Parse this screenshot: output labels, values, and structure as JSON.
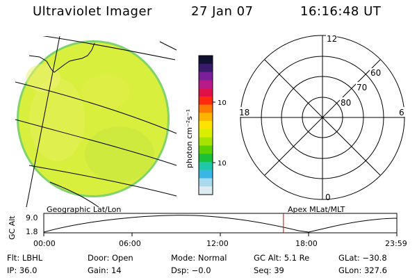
{
  "header": {
    "title": "Ultraviolet Imager",
    "date": "27 Jan 07",
    "time": "16:16:48 UT"
  },
  "colorbar": {
    "label": "photon cm⁻²s⁻¹",
    "tick_labels": [
      "100",
      "10"
    ],
    "colors": [
      "#111133",
      "#3a1a6a",
      "#7a1e9a",
      "#b81a8a",
      "#e0104a",
      "#ff2a10",
      "#ff7a00",
      "#ffb400",
      "#ffe300",
      "#d8f000",
      "#a6e400",
      "#5cd000",
      "#1bbf3a",
      "#1ec8a8",
      "#3ab6e6",
      "#a9d9ec",
      "#dcecf2"
    ]
  },
  "earth_panel": {
    "label": "Geographic Lat/Lon",
    "disk_color": "#d8ef3e",
    "edge_color": "#7fd36a",
    "limb_color": "#e8ecf0"
  },
  "polar_panel": {
    "label": "Apex MLat/MLT",
    "mlt_labels": [
      "12",
      "18",
      "6",
      "0"
    ],
    "mlat_labels": [
      "60",
      "70",
      "80"
    ]
  },
  "altitude_plot": {
    "ylabel": "GC Alt",
    "ytick_labels": [
      "9.0",
      "1.8"
    ],
    "time_labels": [
      "00:00",
      "06:00",
      "12:00",
      "18:00",
      "23:59"
    ],
    "marker_color": "#e00000",
    "marker_time_hours": 16.28
  },
  "info": {
    "row1": [
      "Flt: LBHL",
      "Door: Open",
      "Mode: Normal",
      "GC Alt: 5.1 Re",
      "GLat: −30.8"
    ],
    "row2": [
      "IP: 36.0",
      "Gain: 14",
      "Dsp:  −0.0",
      "Seq: 39",
      "GLon: 327.6"
    ]
  }
}
